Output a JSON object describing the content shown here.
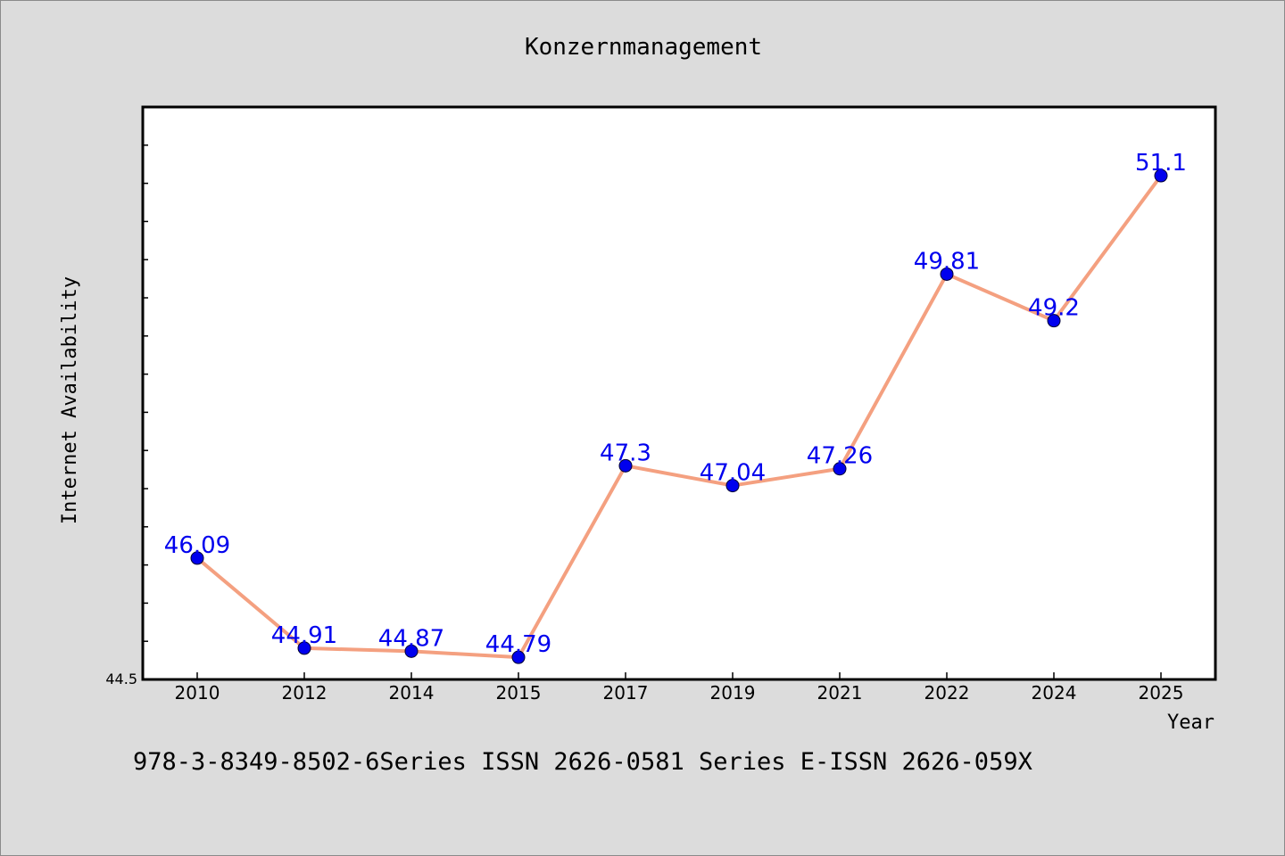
{
  "chart_data": {
    "type": "line",
    "title": "Konzernmanagement",
    "xlabel": "Year",
    "ylabel": "Internet Availability",
    "categories": [
      "2010",
      "2012",
      "2014",
      "2015",
      "2017",
      "2019",
      "2021",
      "2022",
      "2024",
      "2025"
    ],
    "series": [
      {
        "values": [
          46.09,
          44.91,
          44.87,
          44.79,
          47.3,
          47.04,
          47.26,
          49.81,
          49.2,
          51.1
        ],
        "data_labels": [
          "46.09",
          "44.91",
          "44.87",
          "44.79",
          "47.3",
          "47.04",
          "47.26",
          "49.81",
          "49.2",
          "51.1"
        ],
        "line_color": "#f4a080",
        "marker_color": "#0000ee"
      }
    ],
    "ylim": [
      44.5,
      52.0
    ],
    "y_tick_labels": [
      "44.5"
    ],
    "grid": false,
    "legend": "none"
  },
  "footer": {
    "text": "978-3-8349-8502-6Series ISSN 2626-0581 Series E-ISSN 2626-059X"
  }
}
